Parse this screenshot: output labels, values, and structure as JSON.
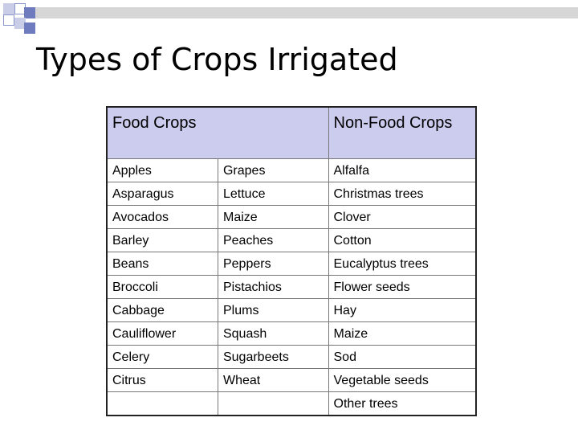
{
  "slide": {
    "title": "Types of Crops Irrigated"
  },
  "colors": {
    "header_fill": "#ccccee",
    "deco_square": "#6f7bbf",
    "deco_bar": "#d6d6d6"
  },
  "table": {
    "headers": {
      "food": "Food Crops",
      "nonfood": "Non-Food Crops"
    },
    "rows": [
      [
        "Apples",
        "Grapes",
        "Alfalfa"
      ],
      [
        "Asparagus",
        "Lettuce",
        "Christmas trees"
      ],
      [
        "Avocados",
        "Maize",
        "Clover"
      ],
      [
        "Barley",
        "Peaches",
        "Cotton"
      ],
      [
        "Beans",
        "Peppers",
        "Eucalyptus trees"
      ],
      [
        "Broccoli",
        "Pistachios",
        "Flower seeds"
      ],
      [
        "Cabbage",
        "Plums",
        "Hay"
      ],
      [
        "Cauliflower",
        "Squash",
        "Maize"
      ],
      [
        "Celery",
        "Sugarbeets",
        "Sod"
      ],
      [
        "Citrus",
        "Wheat",
        "Vegetable seeds"
      ],
      [
        "",
        "",
        "Other trees"
      ]
    ]
  }
}
